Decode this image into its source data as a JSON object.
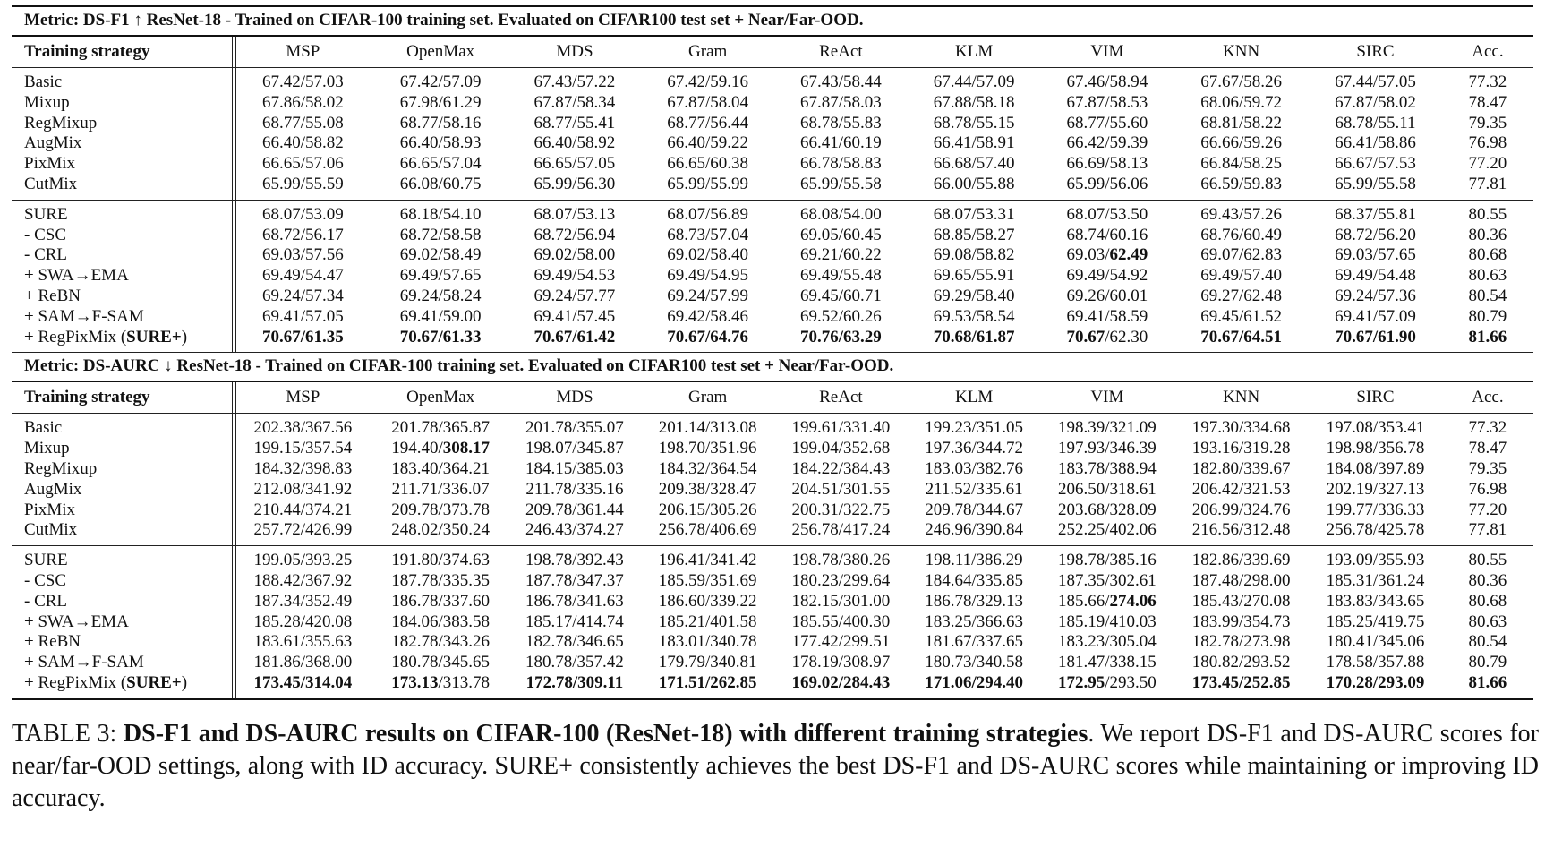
{
  "columns": [
    "MSP",
    "OpenMax",
    "MDS",
    "Gram",
    "ReAct",
    "KLM",
    "VIM",
    "KNN",
    "SIRC",
    "Acc."
  ],
  "row_label_header": "Training strategy",
  "sections": [
    {
      "metric_title": "Metric: DS-F1 ↑ ResNet-18 - Trained on CIFAR-100 training set. Evaluated on CIFAR100 test set + Near/Far-OOD.",
      "groups": [
        [
          {
            "label": "Basic",
            "cells": [
              "67.42/57.03",
              "67.42/57.09",
              "67.43/57.22",
              "67.42/59.16",
              "67.43/58.44",
              "67.44/57.09",
              "67.46/58.94",
              "67.67/58.26",
              "67.44/57.05",
              "77.32"
            ]
          },
          {
            "label": "Mixup",
            "cells": [
              "67.86/58.02",
              "67.98/61.29",
              "67.87/58.34",
              "67.87/58.04",
              "67.87/58.03",
              "67.88/58.18",
              "67.87/58.53",
              "68.06/59.72",
              "67.87/58.02",
              "78.47"
            ]
          },
          {
            "label": "RegMixup",
            "cells": [
              "68.77/55.08",
              "68.77/58.16",
              "68.77/55.41",
              "68.77/56.44",
              "68.78/55.83",
              "68.78/55.15",
              "68.77/55.60",
              "68.81/58.22",
              "68.78/55.11",
              "79.35"
            ]
          },
          {
            "label": "AugMix",
            "cells": [
              "66.40/58.82",
              "66.40/58.93",
              "66.40/58.92",
              "66.40/59.22",
              "66.41/60.19",
              "66.41/58.91",
              "66.42/59.39",
              "66.66/59.26",
              "66.41/58.86",
              "76.98"
            ]
          },
          {
            "label": "PixMix",
            "cells": [
              "66.65/57.06",
              "66.65/57.04",
              "66.65/57.05",
              "66.65/60.38",
              "66.78/58.83",
              "66.68/57.40",
              "66.69/58.13",
              "66.84/58.25",
              "66.67/57.53",
              "77.20"
            ]
          },
          {
            "label": "CutMix",
            "cells": [
              "65.99/55.59",
              "66.08/60.75",
              "65.99/56.30",
              "65.99/55.99",
              "65.99/55.58",
              "66.00/55.88",
              "65.99/56.06",
              "66.59/59.83",
              "65.99/55.58",
              "77.81"
            ]
          }
        ],
        [
          {
            "label": "SURE",
            "cells": [
              "68.07/53.09",
              "68.18/54.10",
              "68.07/53.13",
              "68.07/56.89",
              "68.08/54.00",
              "68.07/53.31",
              "68.07/53.50",
              "69.43/57.26",
              "68.37/55.81",
              "80.55"
            ]
          },
          {
            "label": "- CSC",
            "cells": [
              "68.72/56.17",
              "68.72/58.58",
              "68.72/56.94",
              "68.73/57.04",
              "69.05/60.45",
              "68.85/58.27",
              "68.74/60.16",
              "68.76/60.49",
              "68.72/56.20",
              "80.36"
            ]
          },
          {
            "label": "- CRL",
            "cells": [
              "69.03/57.56",
              "69.02/58.49",
              "69.02/58.00",
              "69.02/58.40",
              "69.21/60.22",
              "69.08/58.82",
              "69.03/**62.49**",
              "69.07/62.83",
              "69.03/57.65",
              "80.68"
            ]
          },
          {
            "label": "+ SWA→EMA",
            "cells": [
              "69.49/54.47",
              "69.49/57.65",
              "69.49/54.53",
              "69.49/54.95",
              "69.49/55.48",
              "69.65/55.91",
              "69.49/54.92",
              "69.49/57.40",
              "69.49/54.48",
              "80.63"
            ]
          },
          {
            "label": "+ ReBN",
            "cells": [
              "69.24/57.34",
              "69.24/58.24",
              "69.24/57.77",
              "69.24/57.99",
              "69.45/60.71",
              "69.29/58.40",
              "69.26/60.01",
              "69.27/62.48",
              "69.24/57.36",
              "80.54"
            ]
          },
          {
            "label": "+ SAM→F-SAM",
            "cells": [
              "69.41/57.05",
              "69.41/59.00",
              "69.41/57.45",
              "69.42/58.46",
              "69.52/60.26",
              "69.53/58.54",
              "69.41/58.59",
              "69.45/61.52",
              "69.41/57.09",
              "80.79"
            ]
          },
          {
            "label": "+ RegPixMix (**SURE+**)",
            "cells": [
              "**70.67/61.35**",
              "**70.67/61.33**",
              "**70.67/61.42**",
              "**70.67/64.76**",
              "**70.76/63.29**",
              "**70.68/61.87**",
              "**70.67**/62.30",
              "**70.67/64.51**",
              "**70.67/61.90**",
              "**81.66**"
            ]
          }
        ]
      ]
    },
    {
      "metric_title": "Metric: DS-AURC ↓ ResNet-18 - Trained on CIFAR-100 training set. Evaluated on CIFAR100 test set + Near/Far-OOD.",
      "groups": [
        [
          {
            "label": "Basic",
            "cells": [
              "202.38/367.56",
              "201.78/365.87",
              "201.78/355.07",
              "201.14/313.08",
              "199.61/331.40",
              "199.23/351.05",
              "198.39/321.09",
              "197.30/334.68",
              "197.08/353.41",
              "77.32"
            ]
          },
          {
            "label": "Mixup",
            "cells": [
              "199.15/357.54",
              "194.40/**308.17**",
              "198.07/345.87",
              "198.70/351.96",
              "199.04/352.68",
              "197.36/344.72",
              "197.93/346.39",
              "193.16/319.28",
              "198.98/356.78",
              "78.47"
            ]
          },
          {
            "label": "RegMixup",
            "cells": [
              "184.32/398.83",
              "183.40/364.21",
              "184.15/385.03",
              "184.32/364.54",
              "184.22/384.43",
              "183.03/382.76",
              "183.78/388.94",
              "182.80/339.67",
              "184.08/397.89",
              "79.35"
            ]
          },
          {
            "label": "AugMix",
            "cells": [
              "212.08/341.92",
              "211.71/336.07",
              "211.78/335.16",
              "209.38/328.47",
              "204.51/301.55",
              "211.52/335.61",
              "206.50/318.61",
              "206.42/321.53",
              "202.19/327.13",
              "76.98"
            ]
          },
          {
            "label": "PixMix",
            "cells": [
              "210.44/374.21",
              "209.78/373.78",
              "209.78/361.44",
              "206.15/305.26",
              "200.31/322.75",
              "209.78/344.67",
              "203.68/328.09",
              "206.99/324.76",
              "199.77/336.33",
              "77.20"
            ]
          },
          {
            "label": "CutMix",
            "cells": [
              "257.72/426.99",
              "248.02/350.24",
              "246.43/374.27",
              "256.78/406.69",
              "256.78/417.24",
              "246.96/390.84",
              "252.25/402.06",
              "216.56/312.48",
              "256.78/425.78",
              "77.81"
            ]
          }
        ],
        [
          {
            "label": "SURE",
            "cells": [
              "199.05/393.25",
              "191.80/374.63",
              "198.78/392.43",
              "196.41/341.42",
              "198.78/380.26",
              "198.11/386.29",
              "198.78/385.16",
              "182.86/339.69",
              "193.09/355.93",
              "80.55"
            ]
          },
          {
            "label": "- CSC",
            "cells": [
              "188.42/367.92",
              "187.78/335.35",
              "187.78/347.37",
              "185.59/351.69",
              "180.23/299.64",
              "184.64/335.85",
              "187.35/302.61",
              "187.48/298.00",
              "185.31/361.24",
              "80.36"
            ]
          },
          {
            "label": "- CRL",
            "cells": [
              "187.34/352.49",
              "186.78/337.60",
              "186.78/341.63",
              "186.60/339.22",
              "182.15/301.00",
              "186.78/329.13",
              "185.66/**274.06**",
              "185.43/270.08",
              "183.83/343.65",
              "80.68"
            ]
          },
          {
            "label": "+ SWA→EMA",
            "cells": [
              "185.28/420.08",
              "184.06/383.58",
              "185.17/414.74",
              "185.21/401.58",
              "185.55/400.30",
              "183.25/366.63",
              "185.19/410.03",
              "183.99/354.73",
              "185.25/419.75",
              "80.63"
            ]
          },
          {
            "label": "+ ReBN",
            "cells": [
              "183.61/355.63",
              "182.78/343.26",
              "182.78/346.65",
              "183.01/340.78",
              "177.42/299.51",
              "181.67/337.65",
              "183.23/305.04",
              "182.78/273.98",
              "180.41/345.06",
              "80.54"
            ]
          },
          {
            "label": "+ SAM→F-SAM",
            "cells": [
              "181.86/368.00",
              "180.78/345.65",
              "180.78/357.42",
              "179.79/340.81",
              "178.19/308.97",
              "180.73/340.58",
              "181.47/338.15",
              "180.82/293.52",
              "178.58/357.88",
              "80.79"
            ]
          },
          {
            "label": "+ RegPixMix (**SURE+**)",
            "cells": [
              "**173.45/314.04**",
              "**173.13**/313.78",
              "**172.78/309.11**",
              "**171.51/262.85**",
              "**169.02/284.43**",
              "**171.06/294.40**",
              "**172.95**/293.50",
              "**173.45/252.85**",
              "**170.28/293.09**",
              "**81.66**"
            ]
          }
        ]
      ]
    }
  ],
  "caption": {
    "prefix": "TABLE 3: ",
    "bold": "DS-F1 and DS-AURC results on CIFAR-100 (ResNet-18) with different training strategies",
    "rest": ". We report DS-F1 and DS-AURC scores for near/far-OOD settings, along with ID accuracy. SURE+ consistently achieves the best DS-F1 and DS-AURC scores while maintaining or improving ID accuracy."
  }
}
